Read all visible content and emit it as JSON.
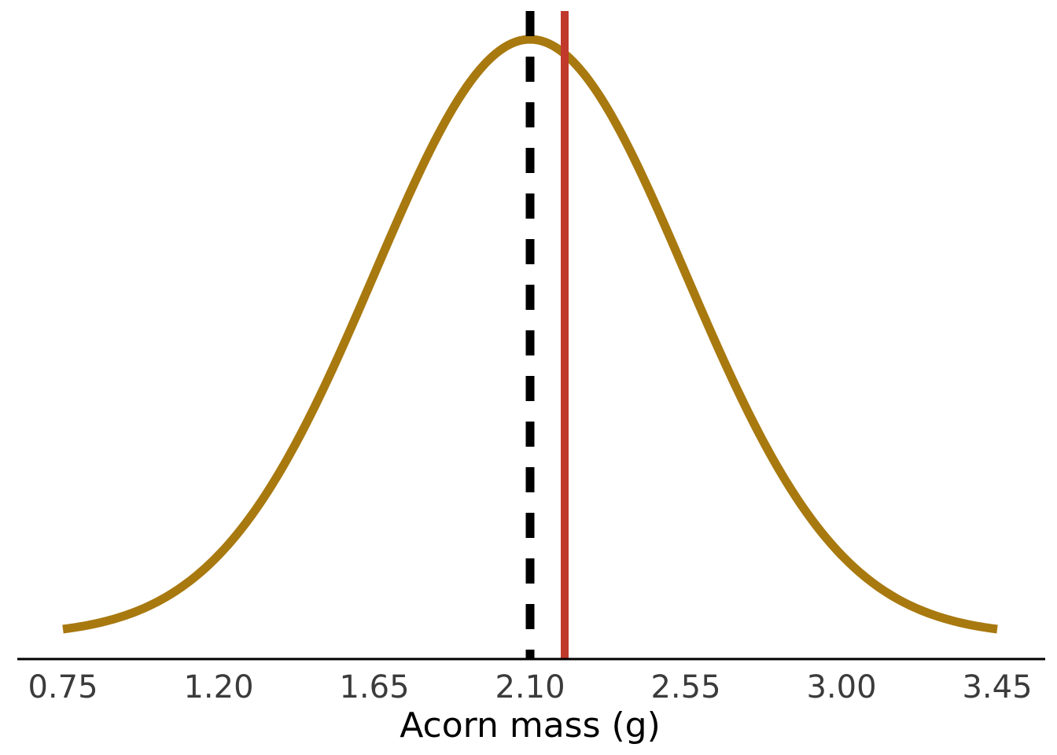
{
  "chart_data": {
    "type": "line",
    "title": "",
    "xlabel": "Acorn mass (g)",
    "ylabel": "",
    "xlim": [
      0.75,
      3.45
    ],
    "ylim": [
      0,
      1
    ],
    "x_ticks": [
      "0.75",
      "1.20",
      "1.65",
      "2.10",
      "2.55",
      "3.00",
      "3.45"
    ],
    "grid": false,
    "legend": "none",
    "series": [
      {
        "kind": "normal-density-curve",
        "mean": 2.1,
        "sd": 0.45,
        "color": "#a8790f"
      }
    ],
    "reference_lines": [
      {
        "kind": "vertical",
        "x": 2.1,
        "style": "dashed",
        "color": "#000000"
      },
      {
        "kind": "vertical",
        "x": 2.2,
        "style": "solid",
        "color": "#c0392b"
      }
    ]
  }
}
